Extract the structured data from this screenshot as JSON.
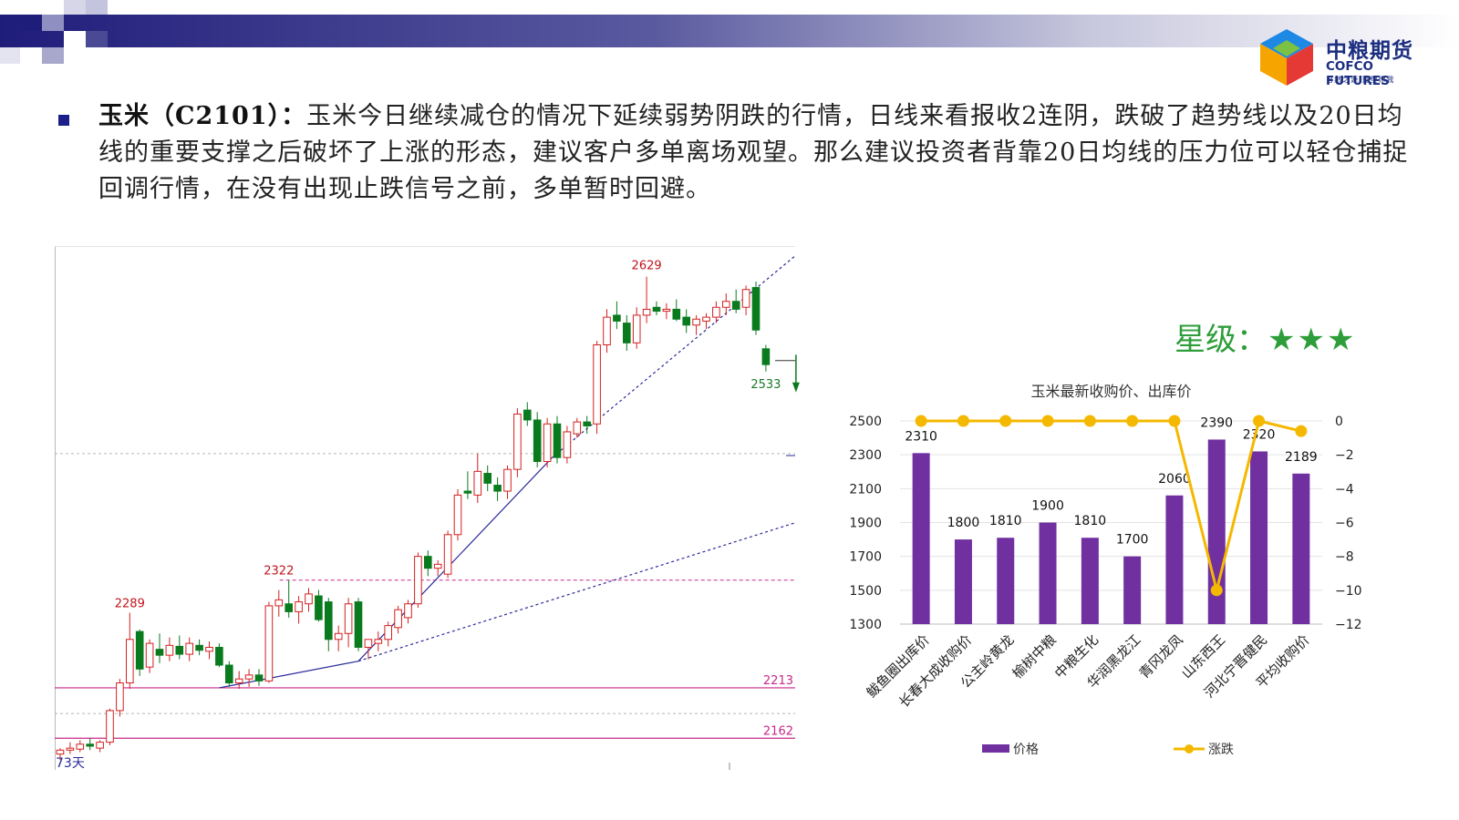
{
  "brand": {
    "name_cn": "中粮期货",
    "name_en": "COFCO FUTURES",
    "tagline": "自然之源 重塑你我"
  },
  "analysis": {
    "title": "玉米（C2101）：",
    "body": "玉米今日继续减仓的情况下延续弱势阴跌的行情，日线来看报收2连阴，跌破了趋势线以及20日均线的重要支撑之后破坏了上涨的形态，建议客户多单离场观望。那么建议投资者背靠20日均线的压力位可以轻仓捕捉回调行情，在没有出现止跌信号之前，多单暂时回避。"
  },
  "rating": {
    "label": "星级：",
    "stars": "★★★"
  },
  "chart_data": [
    {
      "type": "candlestick",
      "title": "",
      "corner_label": "73天",
      "y_range": [
        2130,
        2660
      ],
      "colors": {
        "up": "#d42020",
        "down": "#0a7a1e",
        "support": "#c8288a",
        "trend": "#2a2a9a"
      },
      "annotations": [
        {
          "label": "2629",
          "value": 2629,
          "type": "high",
          "color": "#c0141e"
        },
        {
          "label": "2533",
          "value": 2533,
          "type": "low",
          "color": "#1a7a2a"
        },
        {
          "label": "2322",
          "value": 2322,
          "type": "high",
          "color": "#c0141e"
        },
        {
          "label": "2289",
          "value": 2289,
          "type": "high",
          "color": "#c0141e"
        },
        {
          "label": "2213",
          "value": 2213,
          "type": "support-line",
          "color": "#c8288a"
        },
        {
          "label": "2162",
          "value": 2162,
          "type": "support-line",
          "color": "#c8288a"
        }
      ],
      "candles": [
        {
          "o": 2146,
          "h": 2152,
          "l": 2140,
          "c": 2150
        },
        {
          "o": 2150,
          "h": 2158,
          "l": 2146,
          "c": 2152
        },
        {
          "o": 2151,
          "h": 2160,
          "l": 2148,
          "c": 2156
        },
        {
          "o": 2156,
          "h": 2162,
          "l": 2150,
          "c": 2154
        },
        {
          "o": 2152,
          "h": 2160,
          "l": 2148,
          "c": 2158
        },
        {
          "o": 2158,
          "h": 2192,
          "l": 2155,
          "c": 2190
        },
        {
          "o": 2190,
          "h": 2222,
          "l": 2184,
          "c": 2218
        },
        {
          "o": 2218,
          "h": 2289,
          "l": 2212,
          "c": 2262
        },
        {
          "o": 2270,
          "h": 2272,
          "l": 2225,
          "c": 2232
        },
        {
          "o": 2234,
          "h": 2262,
          "l": 2228,
          "c": 2258
        },
        {
          "o": 2252,
          "h": 2268,
          "l": 2238,
          "c": 2246
        },
        {
          "o": 2246,
          "h": 2264,
          "l": 2240,
          "c": 2256
        },
        {
          "o": 2255,
          "h": 2266,
          "l": 2242,
          "c": 2247
        },
        {
          "o": 2247,
          "h": 2264,
          "l": 2240,
          "c": 2258
        },
        {
          "o": 2256,
          "h": 2262,
          "l": 2246,
          "c": 2251
        },
        {
          "o": 2250,
          "h": 2260,
          "l": 2242,
          "c": 2254
        },
        {
          "o": 2254,
          "h": 2258,
          "l": 2234,
          "c": 2236
        },
        {
          "o": 2236,
          "h": 2240,
          "l": 2214,
          "c": 2218
        },
        {
          "o": 2218,
          "h": 2230,
          "l": 2212,
          "c": 2222
        },
        {
          "o": 2222,
          "h": 2232,
          "l": 2214,
          "c": 2226
        },
        {
          "o": 2226,
          "h": 2232,
          "l": 2215,
          "c": 2220
        },
        {
          "o": 2220,
          "h": 2300,
          "l": 2218,
          "c": 2296
        },
        {
          "o": 2296,
          "h": 2312,
          "l": 2285,
          "c": 2302
        },
        {
          "o": 2298,
          "h": 2322,
          "l": 2284,
          "c": 2290
        },
        {
          "o": 2290,
          "h": 2306,
          "l": 2278,
          "c": 2300
        },
        {
          "o": 2298,
          "h": 2314,
          "l": 2290,
          "c": 2308
        },
        {
          "o": 2306,
          "h": 2312,
          "l": 2280,
          "c": 2282
        },
        {
          "o": 2300,
          "h": 2304,
          "l": 2250,
          "c": 2262
        },
        {
          "o": 2262,
          "h": 2276,
          "l": 2250,
          "c": 2268
        },
        {
          "o": 2268,
          "h": 2304,
          "l": 2254,
          "c": 2298
        },
        {
          "o": 2300,
          "h": 2304,
          "l": 2250,
          "c": 2254
        },
        {
          "o": 2254,
          "h": 2262,
          "l": 2242,
          "c": 2262
        },
        {
          "o": 2258,
          "h": 2270,
          "l": 2250,
          "c": 2262
        },
        {
          "o": 2262,
          "h": 2280,
          "l": 2255,
          "c": 2276
        },
        {
          "o": 2274,
          "h": 2296,
          "l": 2268,
          "c": 2292
        },
        {
          "o": 2284,
          "h": 2302,
          "l": 2278,
          "c": 2298
        },
        {
          "o": 2298,
          "h": 2350,
          "l": 2294,
          "c": 2346
        },
        {
          "o": 2346,
          "h": 2352,
          "l": 2326,
          "c": 2334
        },
        {
          "o": 2334,
          "h": 2342,
          "l": 2326,
          "c": 2338
        },
        {
          "o": 2328,
          "h": 2372,
          "l": 2324,
          "c": 2368
        },
        {
          "o": 2368,
          "h": 2414,
          "l": 2362,
          "c": 2408
        },
        {
          "o": 2412,
          "h": 2432,
          "l": 2404,
          "c": 2410
        },
        {
          "o": 2408,
          "h": 2450,
          "l": 2400,
          "c": 2432
        },
        {
          "o": 2430,
          "h": 2438,
          "l": 2412,
          "c": 2420
        },
        {
          "o": 2418,
          "h": 2426,
          "l": 2402,
          "c": 2412
        },
        {
          "o": 2412,
          "h": 2438,
          "l": 2404,
          "c": 2434
        },
        {
          "o": 2434,
          "h": 2496,
          "l": 2426,
          "c": 2490
        },
        {
          "o": 2494,
          "h": 2502,
          "l": 2478,
          "c": 2484
        },
        {
          "o": 2484,
          "h": 2492,
          "l": 2436,
          "c": 2442
        },
        {
          "o": 2442,
          "h": 2486,
          "l": 2436,
          "c": 2480
        },
        {
          "o": 2480,
          "h": 2488,
          "l": 2440,
          "c": 2446
        },
        {
          "o": 2446,
          "h": 2478,
          "l": 2440,
          "c": 2472
        },
        {
          "o": 2470,
          "h": 2486,
          "l": 2466,
          "c": 2482
        },
        {
          "o": 2482,
          "h": 2488,
          "l": 2470,
          "c": 2478
        },
        {
          "o": 2480,
          "h": 2564,
          "l": 2470,
          "c": 2560
        },
        {
          "o": 2560,
          "h": 2596,
          "l": 2552,
          "c": 2588
        },
        {
          "o": 2590,
          "h": 2604,
          "l": 2576,
          "c": 2584
        },
        {
          "o": 2582,
          "h": 2590,
          "l": 2554,
          "c": 2562
        },
        {
          "o": 2562,
          "h": 2598,
          "l": 2556,
          "c": 2590
        },
        {
          "o": 2590,
          "h": 2629,
          "l": 2582,
          "c": 2596
        },
        {
          "o": 2598,
          "h": 2604,
          "l": 2590,
          "c": 2594
        },
        {
          "o": 2594,
          "h": 2602,
          "l": 2586,
          "c": 2596
        },
        {
          "o": 2596,
          "h": 2606,
          "l": 2584,
          "c": 2586
        },
        {
          "o": 2588,
          "h": 2596,
          "l": 2572,
          "c": 2580
        },
        {
          "o": 2580,
          "h": 2590,
          "l": 2570,
          "c": 2586
        },
        {
          "o": 2584,
          "h": 2592,
          "l": 2576,
          "c": 2588
        },
        {
          "o": 2588,
          "h": 2604,
          "l": 2582,
          "c": 2598
        },
        {
          "o": 2598,
          "h": 2612,
          "l": 2590,
          "c": 2604
        },
        {
          "o": 2604,
          "h": 2616,
          "l": 2592,
          "c": 2596
        },
        {
          "o": 2598,
          "h": 2620,
          "l": 2590,
          "c": 2616
        },
        {
          "o": 2618,
          "h": 2624,
          "l": 2570,
          "c": 2575
        },
        {
          "o": 2556,
          "h": 2560,
          "l": 2533,
          "c": 2540
        }
      ]
    },
    {
      "type": "bar-line-combo",
      "title": "玉米最新收购价、出库价",
      "categories": [
        "鲅鱼圈出库价",
        "长春大成收购价",
        "公主岭黄龙",
        "榆树中粮",
        "中粮生化",
        "华润黑龙江",
        "青冈龙凤",
        "山东西王",
        "河北宁晋健民",
        "平均收购价"
      ],
      "series": [
        {
          "name": "价格",
          "type": "bar",
          "axis": "left",
          "color": "#7030a0",
          "values": [
            2310,
            1800,
            1810,
            1900,
            1810,
            1700,
            2060,
            2390,
            2320,
            2189
          ]
        },
        {
          "name": "涨跌",
          "type": "line",
          "axis": "right",
          "color": "#f5b800",
          "values": [
            0,
            0,
            0,
            0,
            0,
            0,
            0,
            -10,
            0,
            -0.6
          ]
        }
      ],
      "y_left": {
        "min": 1300,
        "max": 2500,
        "ticks": [
          "1300",
          "1500",
          "1700",
          "1900",
          "2100",
          "2300",
          "2500"
        ]
      },
      "y_right": {
        "min": -12,
        "max": 0,
        "ticks": [
          "−12",
          "−10",
          "−8",
          "−6",
          "−4",
          "−2",
          "0"
        ]
      },
      "data_labels": [
        "2310",
        "1800",
        "1810",
        "1900",
        "1810",
        "1700",
        "2060",
        "2390",
        "2320",
        "2189"
      ],
      "legend": {
        "position": "bottom",
        "entries": [
          "价格",
          "涨跌"
        ]
      },
      "grid": true
    }
  ]
}
